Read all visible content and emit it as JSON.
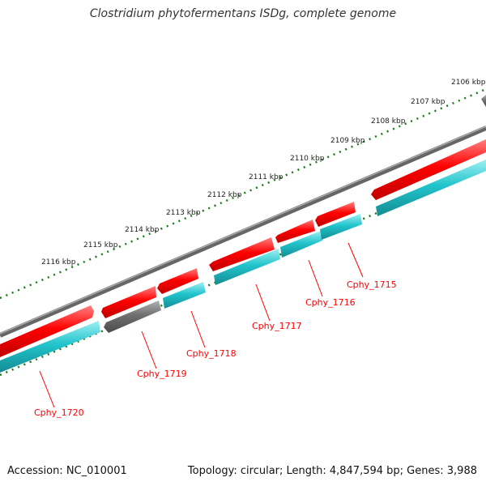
{
  "title": "Clostridium phytofermentans ISDg, complete genome",
  "footer": {
    "accession": "Accession: NC_010001",
    "summary": "Topology: circular; Length: 4,847,594 bp; Genes: 3,988"
  },
  "genome": {
    "ruler_unit": "kbp",
    "ruler_labels": [
      "2106 kbp",
      "2107 kbp",
      "2108 kbp",
      "2109 kbp",
      "2110 kbp",
      "2111 kbp",
      "2112 kbp",
      "2113 kbp",
      "2114 kbp",
      "2115 kbp",
      "2116 kbp"
    ],
    "gene_labels": [
      "Cphy_1715",
      "Cphy_1716",
      "Cphy_1717",
      "Cphy_1718",
      "Cphy_1719",
      "Cphy_1720"
    ]
  },
  "colors": {
    "forward_cds": "#ff0000",
    "reverse_cds": "#22c4cc",
    "other_feature": "#707070",
    "backbone": "#808080",
    "ticks": "#1a7a1a",
    "label": "#ff0000"
  }
}
